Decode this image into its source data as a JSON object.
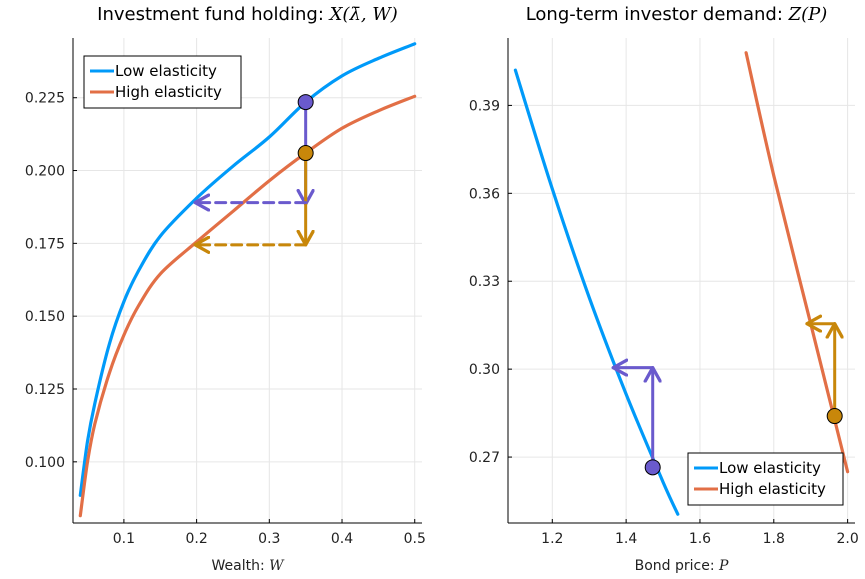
{
  "colors": {
    "low": "#009af9",
    "high": "#e26f46",
    "purple": "#6a5acd",
    "gold": "#c8870a",
    "grid": "#e6e6e6",
    "axis": "#000000"
  },
  "chart_data": [
    {
      "type": "line",
      "title_prefix": "Investment fund holding: ",
      "title_math": "X(λ̄, W)",
      "xlabel_prefix": "Wealth: ",
      "xlabel_math": "W",
      "xlim": [
        0.03,
        0.51
      ],
      "ylim": [
        0.079,
        0.2455
      ],
      "xticks": [
        0.1,
        0.2,
        0.3,
        0.4,
        0.5
      ],
      "xtick_labels": [
        "0.1",
        "0.2",
        "0.3",
        "0.4",
        "0.5"
      ],
      "yticks": [
        0.1,
        0.125,
        0.15,
        0.175,
        0.2,
        0.225
      ],
      "ytick_labels": [
        "0.100",
        "0.125",
        "0.150",
        "0.175",
        "0.200",
        "0.225"
      ],
      "grid": true,
      "legend_position": "top-left",
      "series": [
        {
          "name": "Low elasticity",
          "x": [
            0.04,
            0.05,
            0.06,
            0.08,
            0.1,
            0.12,
            0.15,
            0.2,
            0.25,
            0.3,
            0.35,
            0.4,
            0.45,
            0.5
          ],
          "y": [
            0.0885,
            0.107,
            0.12,
            0.1405,
            0.155,
            0.1655,
            0.1775,
            0.1905,
            0.2015,
            0.2115,
            0.2235,
            0.2325,
            0.2385,
            0.2435
          ]
        },
        {
          "name": "High elasticity",
          "x": [
            0.04,
            0.05,
            0.06,
            0.08,
            0.1,
            0.12,
            0.15,
            0.2,
            0.25,
            0.3,
            0.35,
            0.4,
            0.45,
            0.5
          ],
          "y": [
            0.0815,
            0.1,
            0.113,
            0.1305,
            0.1435,
            0.1535,
            0.1645,
            0.1755,
            0.186,
            0.1965,
            0.206,
            0.2145,
            0.2205,
            0.2255
          ]
        }
      ],
      "points": [
        {
          "x": 0.35,
          "y": 0.2235,
          "color": "purple"
        },
        {
          "x": 0.35,
          "y": 0.206,
          "color": "gold"
        }
      ],
      "arrows": [
        {
          "from": [
            0.35,
            0.2235
          ],
          "to": [
            0.35,
            0.1885
          ],
          "color": "purple",
          "dashed": false
        },
        {
          "from": [
            0.35,
            0.2055
          ],
          "to": [
            0.35,
            0.1745
          ],
          "color": "gold",
          "dashed": false
        },
        {
          "from": [
            0.35,
            0.189
          ],
          "to": [
            0.198,
            0.189
          ],
          "color": "purple",
          "dashed": true
        },
        {
          "from": [
            0.35,
            0.1745
          ],
          "to": [
            0.198,
            0.1745
          ],
          "color": "gold",
          "dashed": true
        }
      ]
    },
    {
      "type": "line",
      "title_prefix": "Long-term investor demand: ",
      "title_math": "Z(P)",
      "xlabel_prefix": "Bond price: ",
      "xlabel_math": "P",
      "xlim": [
        1.08,
        2.02
      ],
      "ylim": [
        0.2475,
        0.413
      ],
      "xticks": [
        1.2,
        1.4,
        1.6,
        1.8,
        2.0
      ],
      "xtick_labels": [
        "1.2",
        "1.4",
        "1.6",
        "1.8",
        "2.0"
      ],
      "yticks": [
        0.27,
        0.3,
        0.33,
        0.36,
        0.39
      ],
      "ytick_labels": [
        "0.27",
        "0.30",
        "0.33",
        "0.36",
        "0.39"
      ],
      "grid": true,
      "legend_position": "bottom-right",
      "series": [
        {
          "name": "Low elasticity",
          "x": [
            1.1,
            1.2,
            1.3,
            1.4,
            1.5,
            1.54
          ],
          "y": [
            0.402,
            0.3615,
            0.3245,
            0.2915,
            0.2615,
            0.2505
          ]
        },
        {
          "name": "High elasticity",
          "x": [
            1.725,
            1.8,
            1.9,
            2.0
          ],
          "y": [
            0.408,
            0.366,
            0.3155,
            0.265
          ]
        }
      ],
      "points": [
        {
          "x": 1.472,
          "y": 0.2665,
          "color": "purple"
        },
        {
          "x": 1.965,
          "y": 0.284,
          "color": "gold"
        }
      ],
      "arrows": [
        {
          "from": [
            1.472,
            0.2665
          ],
          "to": [
            1.472,
            0.3005
          ],
          "color": "purple",
          "dashed": false
        },
        {
          "from": [
            1.472,
            0.3005
          ],
          "to": [
            1.365,
            0.3005
          ],
          "color": "purple",
          "dashed": false
        },
        {
          "from": [
            1.965,
            0.284
          ],
          "to": [
            1.965,
            0.3155
          ],
          "color": "gold",
          "dashed": false
        },
        {
          "from": [
            1.965,
            0.3155
          ],
          "to": [
            1.89,
            0.3155
          ],
          "color": "gold",
          "dashed": false
        }
      ]
    }
  ]
}
